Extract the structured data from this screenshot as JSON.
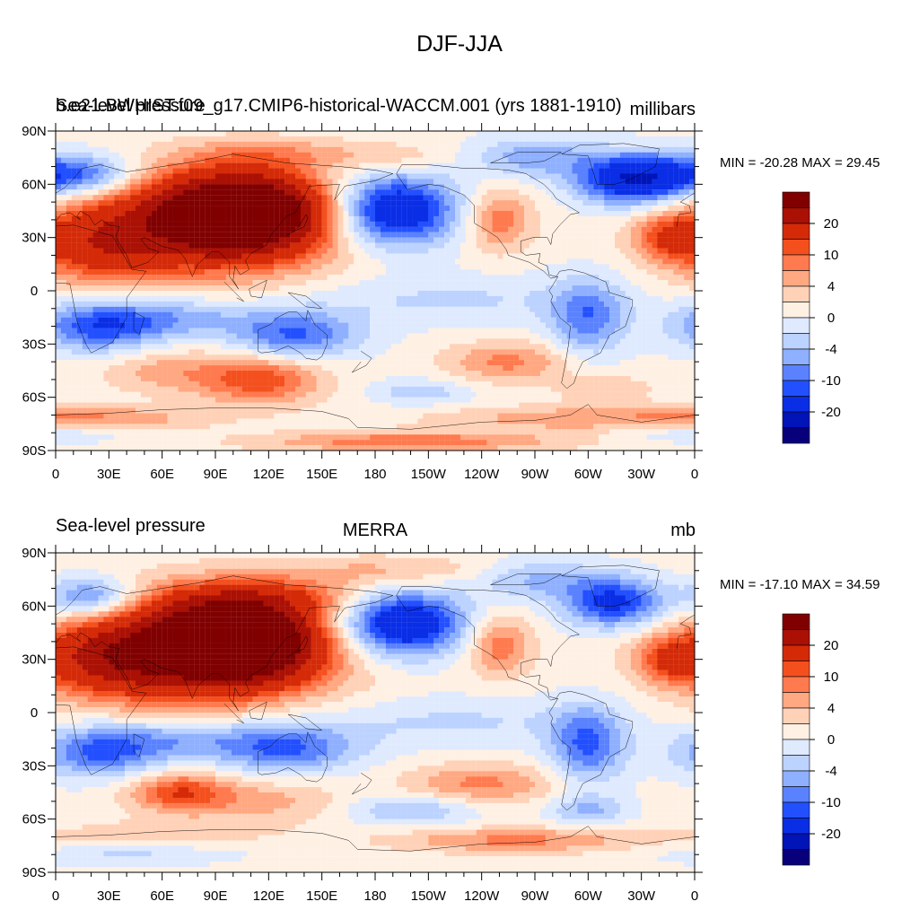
{
  "figure_title": "DJF-JJA",
  "colors": {
    "ocean_background": "#ffe8d8",
    "coastline": "#000000",
    "palette_levels": [
      "#08007a",
      "#0014b8",
      "#0a2ee6",
      "#2350ff",
      "#5a82ff",
      "#8fb0ff",
      "#bcd2ff",
      "#dfeaff",
      "#fff0e4",
      "#ffd2b8",
      "#ffa882",
      "#ff7a4e",
      "#f4501e",
      "#d42a08",
      "#ab1004",
      "#800000"
    ]
  },
  "colorbar": {
    "tick_labels": [
      "20",
      "10",
      "4",
      "0",
      "-4",
      "-10",
      "-20"
    ]
  },
  "chart_data": [
    {
      "type": "heatmap",
      "panel": "top",
      "title_left": "Sea-level pressure",
      "title_left_overprint": "b.e21.BWHIST.f09_g17.CMIP6-historical-WACCM.001 (yrs 1881-1910)",
      "title_center": "",
      "title_right": "millibars",
      "stats": "MIN = -20.28 MAX =  29.45",
      "min": -20.28,
      "max": 29.45,
      "xlim": [
        0,
        360
      ],
      "ylim": [
        -90,
        90
      ],
      "x_ticks": [
        "0",
        "30E",
        "60E",
        "90E",
        "120E",
        "150E",
        "180",
        "150W",
        "120W",
        "90W",
        "60W",
        "30W",
        "0"
      ],
      "y_ticks": [
        "90N",
        "60N",
        "30N",
        "0",
        "30S",
        "60S",
        "90S"
      ],
      "contour_levels": [
        -20,
        -15,
        -10,
        -8,
        -6,
        -4,
        -2,
        0,
        2,
        4,
        6,
        8,
        10,
        15,
        20
      ],
      "features": [
        {
          "lon": 105,
          "lat": 45,
          "value": 27,
          "sx": 32,
          "sy": 15
        },
        {
          "lon": 80,
          "lat": 35,
          "value": 12,
          "sx": 55,
          "sy": 20
        },
        {
          "lon": 25,
          "lat": 25,
          "value": 8,
          "sx": 25,
          "sy": 15
        },
        {
          "lon": 190,
          "lat": 45,
          "value": -16,
          "sx": 25,
          "sy": 14
        },
        {
          "lon": 250,
          "lat": 40,
          "value": 7,
          "sx": 13,
          "sy": 12
        },
        {
          "lon": 345,
          "lat": 30,
          "value": 7,
          "sx": 13,
          "sy": 9
        },
        {
          "lon": 320,
          "lat": 62,
          "value": -12,
          "sx": 20,
          "sy": 10
        },
        {
          "lon": 345,
          "lat": 65,
          "value": -9,
          "sx": 20,
          "sy": 9
        },
        {
          "lon": 20,
          "lat": 65,
          "value": -8,
          "sx": 18,
          "sy": 8
        },
        {
          "lon": 270,
          "lat": 75,
          "value": -6,
          "sx": 25,
          "sy": 8
        },
        {
          "lon": 120,
          "lat": 78,
          "value": 4,
          "sx": 35,
          "sy": 6
        },
        {
          "lon": 190,
          "lat": 75,
          "value": 3,
          "sx": 25,
          "sy": 6
        },
        {
          "lon": 25,
          "lat": -20,
          "value": -10,
          "sx": 25,
          "sy": 10
        },
        {
          "lon": 135,
          "lat": -25,
          "value": -9,
          "sx": 25,
          "sy": 10
        },
        {
          "lon": 300,
          "lat": -15,
          "value": -8,
          "sx": 15,
          "sy": 15
        },
        {
          "lon": 70,
          "lat": -15,
          "value": -5,
          "sx": 30,
          "sy": 8
        },
        {
          "lon": 220,
          "lat": -5,
          "value": -3,
          "sx": 60,
          "sy": 10
        },
        {
          "lon": 115,
          "lat": -50,
          "value": 9,
          "sx": 25,
          "sy": 10
        },
        {
          "lon": 60,
          "lat": -45,
          "value": 4,
          "sx": 25,
          "sy": 9
        },
        {
          "lon": 255,
          "lat": -40,
          "value": 6,
          "sx": 25,
          "sy": 8
        },
        {
          "lon": 205,
          "lat": -57,
          "value": -4,
          "sx": 20,
          "sy": 5
        },
        {
          "lon": 310,
          "lat": -55,
          "value": 3,
          "sx": 20,
          "sy": 6
        },
        {
          "lon": 300,
          "lat": -72,
          "value": 5,
          "sx": 60,
          "sy": 5
        },
        {
          "lon": 30,
          "lat": -72,
          "value": 4,
          "sx": 40,
          "sy": 5
        },
        {
          "lon": 200,
          "lat": -85,
          "value": 7,
          "sx": 60,
          "sy": 4
        },
        {
          "lon": 0,
          "lat": -80,
          "value": -3,
          "sx": 30,
          "sy": 4
        }
      ]
    },
    {
      "type": "heatmap",
      "panel": "bottom",
      "title_left": "Sea-level pressure",
      "title_center": "MERRA",
      "title_right": "mb",
      "stats": "MIN = -17.10 MAX =  34.59",
      "min": -17.1,
      "max": 34.59,
      "xlim": [
        0,
        360
      ],
      "ylim": [
        -90,
        90
      ],
      "x_ticks": [
        "0",
        "30E",
        "60E",
        "90E",
        "120E",
        "150E",
        "180",
        "150W",
        "120W",
        "90W",
        "60W",
        "30W",
        "0"
      ],
      "y_ticks": [
        "90N",
        "60N",
        "30N",
        "0",
        "30S",
        "60S",
        "90S"
      ],
      "contour_levels": [
        -20,
        -15,
        -10,
        -8,
        -6,
        -4,
        -2,
        0,
        2,
        4,
        6,
        8,
        10,
        15,
        20
      ],
      "features": [
        {
          "lon": 100,
          "lat": 40,
          "value": 30,
          "sx": 30,
          "sy": 15
        },
        {
          "lon": 80,
          "lat": 35,
          "value": 13,
          "sx": 55,
          "sy": 22
        },
        {
          "lon": 30,
          "lat": 30,
          "value": 10,
          "sx": 25,
          "sy": 14
        },
        {
          "lon": 120,
          "lat": 65,
          "value": 6,
          "sx": 40,
          "sy": 8
        },
        {
          "lon": 195,
          "lat": 50,
          "value": -16,
          "sx": 25,
          "sy": 13
        },
        {
          "lon": 250,
          "lat": 38,
          "value": 7,
          "sx": 13,
          "sy": 12
        },
        {
          "lon": 345,
          "lat": 30,
          "value": 7,
          "sx": 13,
          "sy": 9
        },
        {
          "lon": 315,
          "lat": 62,
          "value": -12,
          "sx": 20,
          "sy": 10
        },
        {
          "lon": 20,
          "lat": 65,
          "value": -9,
          "sx": 18,
          "sy": 8
        },
        {
          "lon": 270,
          "lat": 75,
          "value": -5,
          "sx": 25,
          "sy": 8
        },
        {
          "lon": 190,
          "lat": 80,
          "value": 4,
          "sx": 40,
          "sy": 6
        },
        {
          "lon": 25,
          "lat": -22,
          "value": -9,
          "sx": 25,
          "sy": 10
        },
        {
          "lon": 130,
          "lat": -20,
          "value": -9,
          "sx": 28,
          "sy": 10
        },
        {
          "lon": 300,
          "lat": -18,
          "value": -9,
          "sx": 15,
          "sy": 15
        },
        {
          "lon": 70,
          "lat": -15,
          "value": -5,
          "sx": 30,
          "sy": 8
        },
        {
          "lon": 220,
          "lat": -5,
          "value": -3,
          "sx": 60,
          "sy": 10
        },
        {
          "lon": 70,
          "lat": -45,
          "value": 9,
          "sx": 20,
          "sy": 8
        },
        {
          "lon": 120,
          "lat": -50,
          "value": 4,
          "sx": 30,
          "sy": 9
        },
        {
          "lon": 240,
          "lat": -40,
          "value": 6,
          "sx": 30,
          "sy": 8
        },
        {
          "lon": 200,
          "lat": -55,
          "value": -5,
          "sx": 25,
          "sy": 6
        },
        {
          "lon": 300,
          "lat": -55,
          "value": -5,
          "sx": 15,
          "sy": 6
        },
        {
          "lon": 260,
          "lat": -72,
          "value": 6,
          "sx": 50,
          "sy": 5
        },
        {
          "lon": 60,
          "lat": -68,
          "value": 3,
          "sx": 40,
          "sy": 5
        },
        {
          "lon": 40,
          "lat": -80,
          "value": -3,
          "sx": 40,
          "sy": 4
        }
      ]
    }
  ]
}
